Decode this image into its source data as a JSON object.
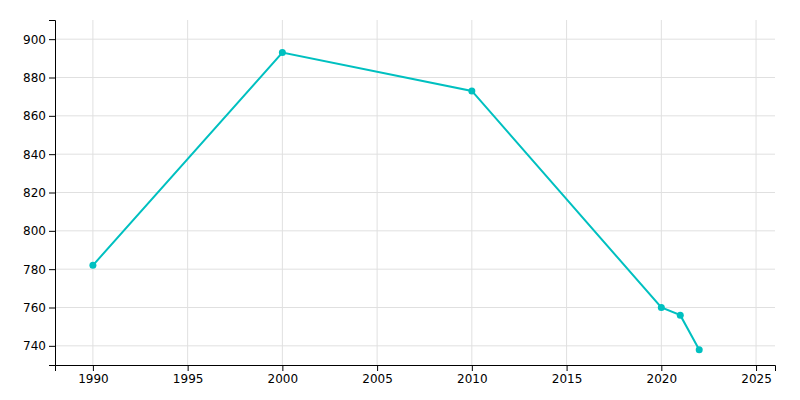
{
  "chart_data": {
    "type": "line",
    "x": [
      1990,
      2000,
      2010,
      2020,
      2021,
      2022
    ],
    "values": [
      782,
      893,
      873,
      760,
      756,
      738
    ],
    "color": "#00C0C0",
    "marker": "circle",
    "xlim": [
      1988,
      2026
    ],
    "xticks": [
      1990,
      1995,
      2000,
      2005,
      2010,
      2015,
      2020,
      2025
    ],
    "ylim": [
      730,
      910
    ],
    "yticks": [
      740,
      760,
      780,
      800,
      820,
      840,
      860,
      880,
      900
    ],
    "grid": true
  }
}
